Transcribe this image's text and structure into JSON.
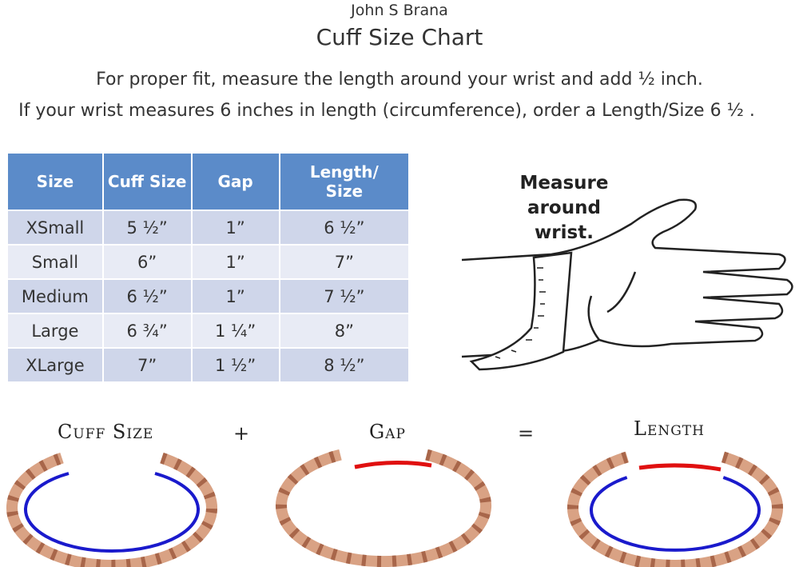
{
  "header": {
    "brand": "John S Brana",
    "title": "Cuff Size Chart",
    "instructions": [
      "For proper fit, measure the length around your wrist and add ½ inch.",
      "If your wrist measures 6 inches in length (circumference), order a Length/Size 6 ½ ."
    ]
  },
  "table": {
    "columns": [
      "Size",
      "Cuff Size",
      "Gap",
      "Length/ Size"
    ],
    "rows": [
      [
        "XSmall",
        "5 ½”",
        "1”",
        "6 ½”"
      ],
      [
        "Small",
        "6”",
        "1”",
        "7”"
      ],
      [
        "Medium",
        "6 ½”",
        "1”",
        "7 ½”"
      ],
      [
        "Large",
        "6 ¾”",
        "1 ¼”",
        "8”"
      ],
      [
        "XLarge",
        "7”",
        "1 ½”",
        "8 ½”"
      ]
    ]
  },
  "illustration": {
    "caption": "Measure around wrist."
  },
  "equation": {
    "terms": [
      "Cuff Size",
      "+",
      "Gap",
      "=",
      "Length"
    ]
  }
}
